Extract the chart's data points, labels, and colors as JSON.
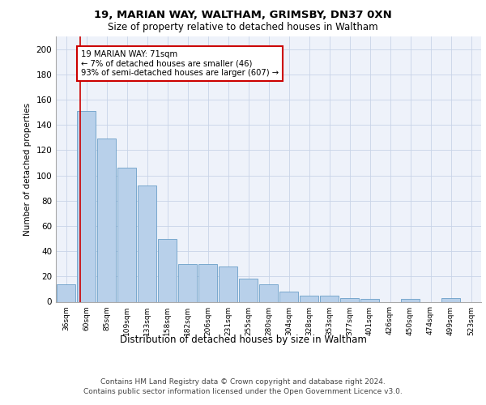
{
  "title1": "19, MARIAN WAY, WALTHAM, GRIMSBY, DN37 0XN",
  "title2": "Size of property relative to detached houses in Waltham",
  "xlabel": "Distribution of detached houses by size in Waltham",
  "ylabel": "Number of detached properties",
  "categories": [
    "36sqm",
    "60sqm",
    "85sqm",
    "109sqm",
    "133sqm",
    "158sqm",
    "182sqm",
    "206sqm",
    "231sqm",
    "255sqm",
    "280sqm",
    "304sqm",
    "328sqm",
    "353sqm",
    "377sqm",
    "401sqm",
    "426sqm",
    "450sqm",
    "474sqm",
    "499sqm",
    "523sqm"
  ],
  "values": [
    14,
    151,
    129,
    106,
    92,
    50,
    30,
    30,
    28,
    18,
    14,
    8,
    5,
    5,
    3,
    2,
    0,
    2,
    0,
    3,
    0
  ],
  "bar_color": "#b8d0ea",
  "bar_edge_color": "#6a9fc8",
  "background_color": "#eef2fa",
  "red_line_index": 1,
  "annotation_text": "19 MARIAN WAY: 71sqm\n← 7% of detached houses are smaller (46)\n93% of semi-detached houses are larger (607) →",
  "annotation_box_color": "#ffffff",
  "annotation_box_edge": "#cc0000",
  "ylim": [
    0,
    210
  ],
  "yticks": [
    0,
    20,
    40,
    60,
    80,
    100,
    120,
    140,
    160,
    180,
    200
  ],
  "footer1": "Contains HM Land Registry data © Crown copyright and database right 2024.",
  "footer2": "Contains public sector information licensed under the Open Government Licence v3.0."
}
